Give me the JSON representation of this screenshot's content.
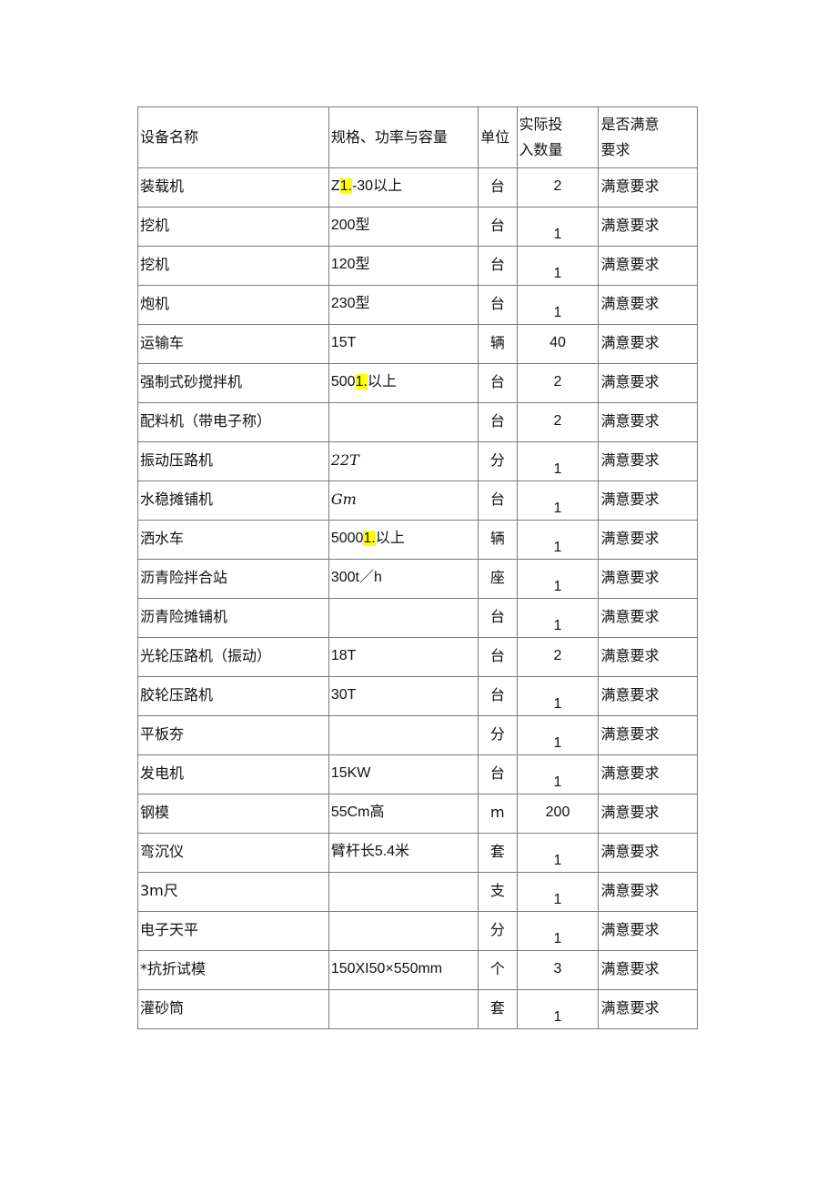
{
  "highlight_color": "#ffff00",
  "header": {
    "name": "设备名称",
    "spec": "规格、功率与容量",
    "unit": "单位",
    "qty_line1": "实际投",
    "qty_line2": "入数量",
    "ok_line1": "是否满意",
    "ok_line2": "要求"
  },
  "rows": [
    {
      "name": "装载机",
      "spec": [
        {
          "text": "Z"
        },
        {
          "text": "1.",
          "hl": true
        },
        {
          "text": "-30以上"
        }
      ],
      "unit": "台",
      "qty": "2",
      "ok": "满意要求"
    },
    {
      "name": "挖机",
      "spec": [
        {
          "text": "200型"
        }
      ],
      "unit": "台",
      "qty": "1",
      "ok": "满意要求"
    },
    {
      "name": "挖机",
      "spec": [
        {
          "text": "120型"
        }
      ],
      "unit": "台",
      "qty": "1",
      "ok": "满意要求"
    },
    {
      "name": "炮机",
      "spec": [
        {
          "text": "230型"
        }
      ],
      "unit": "台",
      "qty": "1",
      "ok": "满意要求"
    },
    {
      "name": "运输车",
      "spec": [
        {
          "text": "15T"
        }
      ],
      "unit": "辆",
      "qty": "40",
      "ok": "满意要求"
    },
    {
      "name": "强制式砂搅拌机",
      "spec": [
        {
          "text": "500"
        },
        {
          "text": "1.",
          "hl": true
        },
        {
          "text": "以上"
        }
      ],
      "unit": "台",
      "qty": "2",
      "ok": "满意要求"
    },
    {
      "name": "配料机（带电子称）",
      "spec": [],
      "unit": "台",
      "qty": "2",
      "ok": "满意要求"
    },
    {
      "name": "振动压路机",
      "spec": [
        {
          "text": "22T",
          "italic": true
        }
      ],
      "unit": "分",
      "qty": "1",
      "ok": "满意要求"
    },
    {
      "name": "水稳摊铺机",
      "spec": [
        {
          "text": "Gm",
          "italic": true
        }
      ],
      "unit": "台",
      "qty": "1",
      "ok": "满意要求"
    },
    {
      "name": "洒水车",
      "spec": [
        {
          "text": "5000"
        },
        {
          "text": "1.",
          "hl": true
        },
        {
          "text": "以上"
        }
      ],
      "unit": "辆",
      "qty": "1",
      "ok": "满意要求"
    },
    {
      "name": "沥青险拌合站",
      "spec": [
        {
          "text": "300t／h"
        }
      ],
      "unit": "座",
      "qty": "1",
      "ok": "满意要求"
    },
    {
      "name": "沥青险摊铺机",
      "spec": [],
      "unit": "台",
      "qty": "1",
      "ok": "满意要求"
    },
    {
      "name": "光轮压路机（振动）",
      "spec": [
        {
          "text": "18T"
        }
      ],
      "unit": "台",
      "qty": "2",
      "ok": "满意要求"
    },
    {
      "name": "胶轮压路机",
      "spec": [
        {
          "text": "30T"
        }
      ],
      "unit": "台",
      "qty": "1",
      "ok": "满意要求"
    },
    {
      "name": "平板夯",
      "spec": [],
      "unit": "分",
      "qty": "1",
      "ok": "满意要求"
    },
    {
      "name": "发电机",
      "spec": [
        {
          "text": "15KW"
        }
      ],
      "unit": "台",
      "qty": "1",
      "ok": "满意要求"
    },
    {
      "name": "钢模",
      "spec": [
        {
          "text": "55Cm高"
        }
      ],
      "unit": "m",
      "qty": "200",
      "ok": "满意要求"
    },
    {
      "name": "弯沉仪",
      "spec": [
        {
          "text": "臂杆长5.4米"
        }
      ],
      "unit": "套",
      "qty": "1",
      "ok": "满意要求"
    },
    {
      "name": "3m尺",
      "spec": [],
      "unit": "支",
      "qty": "1",
      "ok": "满意要求"
    },
    {
      "name": "电子天平",
      "spec": [],
      "unit": "分",
      "qty": "1",
      "ok": "满意要求"
    },
    {
      "name": "*抗折试模",
      "spec": [
        {
          "text": "150XI50×550mm"
        }
      ],
      "unit": "个",
      "qty": "3",
      "ok": "满意要求"
    },
    {
      "name": "灌砂筒",
      "spec": [],
      "unit": "套",
      "qty": "1",
      "ok": "满意要求"
    }
  ]
}
